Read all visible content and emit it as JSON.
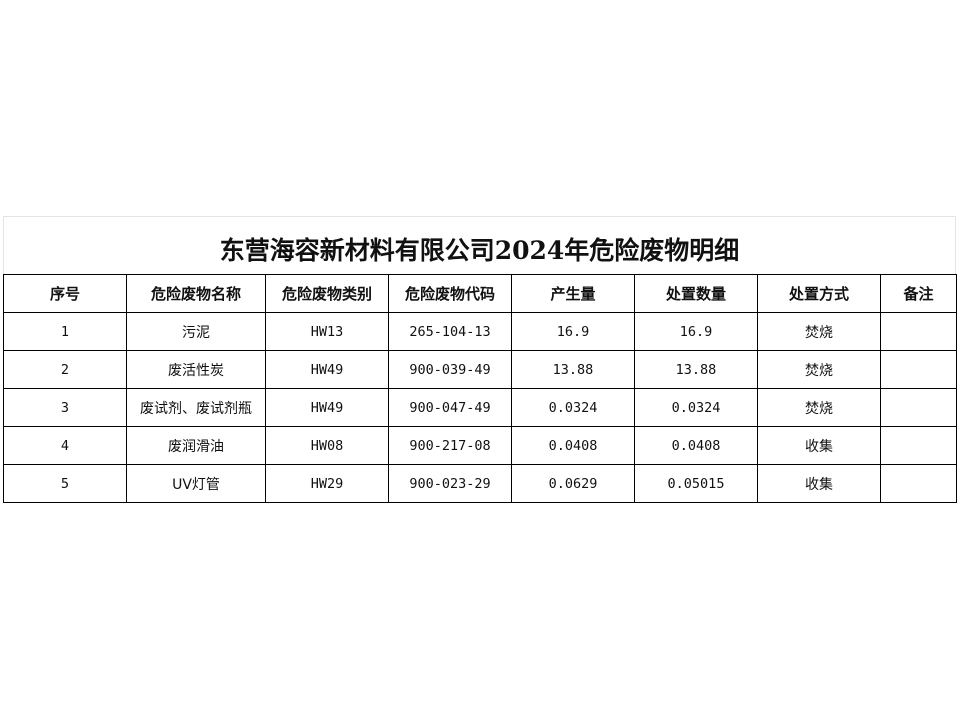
{
  "title": "东营海容新材料有限公司2024年危险废物明细",
  "headers": [
    "序号",
    "危险废物名称",
    "危险废物类别",
    "危险废物代码",
    "产生量",
    "处置数量",
    "处置方式",
    "备注"
  ],
  "rows": [
    [
      "1",
      "污泥",
      "HW13",
      "265-104-13",
      "16.9",
      "16.9",
      "焚烧",
      ""
    ],
    [
      "2",
      "废活性炭",
      "HW49",
      "900-039-49",
      "13.88",
      "13.88",
      "焚烧",
      ""
    ],
    [
      "3",
      "废试剂、废试剂瓶",
      "HW49",
      "900-047-49",
      "0.0324",
      "0.0324",
      "焚烧",
      ""
    ],
    [
      "4",
      "废润滑油",
      "HW08",
      "900-217-08",
      "0.0408",
      "0.0408",
      "收集",
      ""
    ],
    [
      "5",
      "UV灯管",
      "HW29",
      "900-023-29",
      "0.0629",
      "0.05015",
      "收集",
      ""
    ]
  ]
}
